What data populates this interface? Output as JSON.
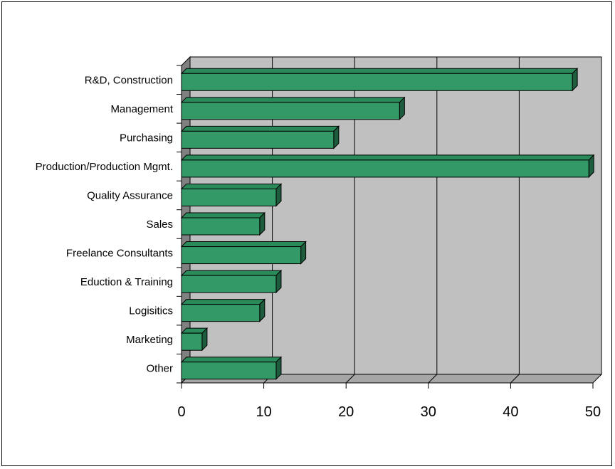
{
  "chart_data": {
    "type": "bar",
    "orientation": "horizontal",
    "style": "3d",
    "categories": [
      "R&D, Construction",
      "Management",
      "Purchasing",
      "Production/Production Mgmt.",
      "Quality Assurance",
      "Sales",
      "Freelance Consultants",
      "Eduction & Training",
      "Logisitics",
      "Marketing",
      "Other"
    ],
    "values": [
      47.5,
      26.5,
      18.5,
      49.5,
      11.5,
      9.5,
      14.5,
      11.5,
      9.5,
      2.5,
      11.5
    ],
    "xlim": [
      0,
      50
    ],
    "xticks": [
      "0",
      "10",
      "20",
      "30",
      "40",
      "50"
    ],
    "title": "",
    "xlabel": "",
    "ylabel": "",
    "grid": true,
    "legend": "none",
    "colors": {
      "bar_front": "#339966",
      "bar_top": "#2b8a5a",
      "bar_side": "#1d5c3c",
      "wall": "#c0c0c0",
      "wall_side": "#808080",
      "floor": "#a6a6a6",
      "gridline": "#000000"
    }
  }
}
